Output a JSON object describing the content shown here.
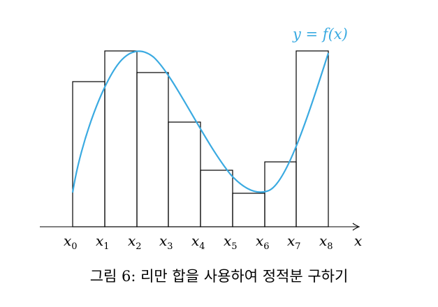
{
  "curve": {
    "label": "y = f(x)",
    "color": "#3aaae1"
  },
  "axis": {
    "label": "x"
  },
  "points": [
    {
      "name": "x",
      "sub": "0"
    },
    {
      "name": "x",
      "sub": "1"
    },
    {
      "name": "x",
      "sub": "2"
    },
    {
      "name": "x",
      "sub": "3"
    },
    {
      "name": "x",
      "sub": "4"
    },
    {
      "name": "x",
      "sub": "5"
    },
    {
      "name": "x",
      "sub": "6"
    },
    {
      "name": "x",
      "sub": "7"
    },
    {
      "name": "x",
      "sub": "8"
    }
  ],
  "caption": "그림 6: 리만 합을 사용하여 정적분 구하기"
}
